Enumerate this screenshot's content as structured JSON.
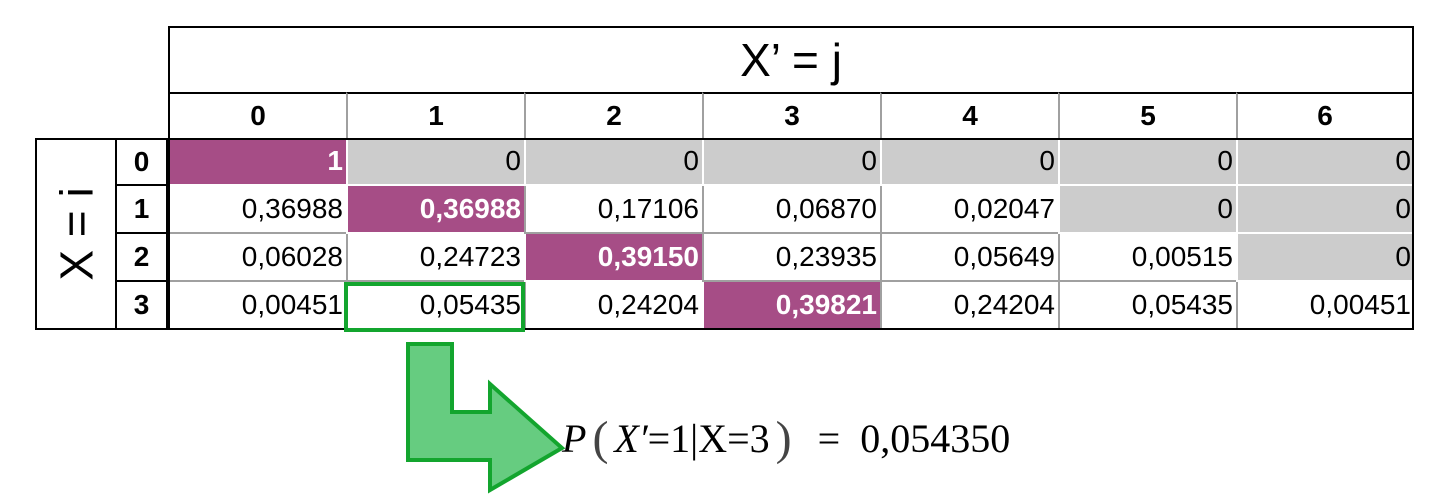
{
  "header": {
    "title": "X’ = j"
  },
  "row_axis": {
    "label": "X = i"
  },
  "columns": [
    "0",
    "1",
    "2",
    "3",
    "4",
    "5",
    "6"
  ],
  "rows": [
    {
      "index": "0",
      "cells": [
        "1",
        "0",
        "0",
        "0",
        "0",
        "0",
        "0"
      ]
    },
    {
      "index": "1",
      "cells": [
        "0,36988",
        "0,36988",
        "0,17106",
        "0,06870",
        "0,02047",
        "0",
        "0"
      ]
    },
    {
      "index": "2",
      "cells": [
        "0,06028",
        "0,24723",
        "0,39150",
        "0,23935",
        "0,05649",
        "0,00515",
        "0"
      ]
    },
    {
      "index": "3",
      "cells": [
        "0,00451",
        "0,05435",
        "0,24204",
        "0,39821",
        "0,24204",
        "0,05435",
        "0,00451"
      ]
    }
  ],
  "colors": {
    "diagonal": "#a64d86",
    "zero_cells": "#cccccc",
    "highlight_border": "#13a52e",
    "arrow_fill": "#66cc80"
  },
  "highlight": {
    "row": "3",
    "column": "1"
  },
  "formula": {
    "p": "P",
    "open_paren": "(",
    "x_prime": "X′",
    "eq1": "=",
    "one": "1",
    "bar": "|",
    "x": "X",
    "eq2": "=",
    "three": "3",
    "close_paren": ")",
    "equals": "=",
    "result": "0,054350"
  }
}
